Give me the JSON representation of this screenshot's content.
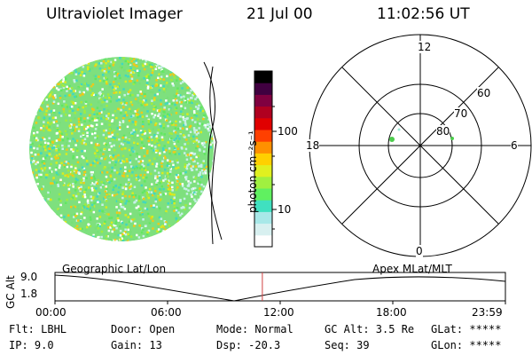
{
  "header": {
    "title": "Ultraviolet Imager",
    "date": "21 Jul 00",
    "time": "11:02:56 UT"
  },
  "colorbar": {
    "unit_label": "photon cm⁻²s⁻¹",
    "tick_100": "100",
    "tick_10": "10",
    "colors": [
      "#ffffff",
      "#d8f0f0",
      "#a8e8e8",
      "#40e0c0",
      "#60f060",
      "#a0f040",
      "#e0f020",
      "#ffd000",
      "#ff9000",
      "#ff4000",
      "#e00000",
      "#b00020",
      "#800040",
      "#400040",
      "#000000"
    ]
  },
  "polar_plot": {
    "label_top": "12",
    "label_bottom": "0",
    "label_left": "18",
    "label_right": "6",
    "lat_60": "60",
    "lat_70": "70",
    "lat_80": "80"
  },
  "timeline": {
    "y_label": "GC Alt",
    "y_max": "9.0",
    "y_min": "1.8",
    "left_caption": "Geographic Lat/Lon",
    "right_caption": "Apex MLat/MLT",
    "ticks": [
      "00:00",
      "06:00",
      "12:00",
      "18:00",
      "23:59"
    ],
    "cursor_time_fraction": 0.4604
  },
  "info": {
    "flt": "Flt: LBHL",
    "ip": "IP:  9.0",
    "door": "Door: Open",
    "gain": "Gain: 13",
    "mode": "Mode: Normal",
    "dsp": "Dsp:  -20.3",
    "gc_alt": "GC Alt: 3.5 Re",
    "seq": "Seq: 39",
    "glat": "GLat: *****",
    "glon": "GLon: *****"
  }
}
